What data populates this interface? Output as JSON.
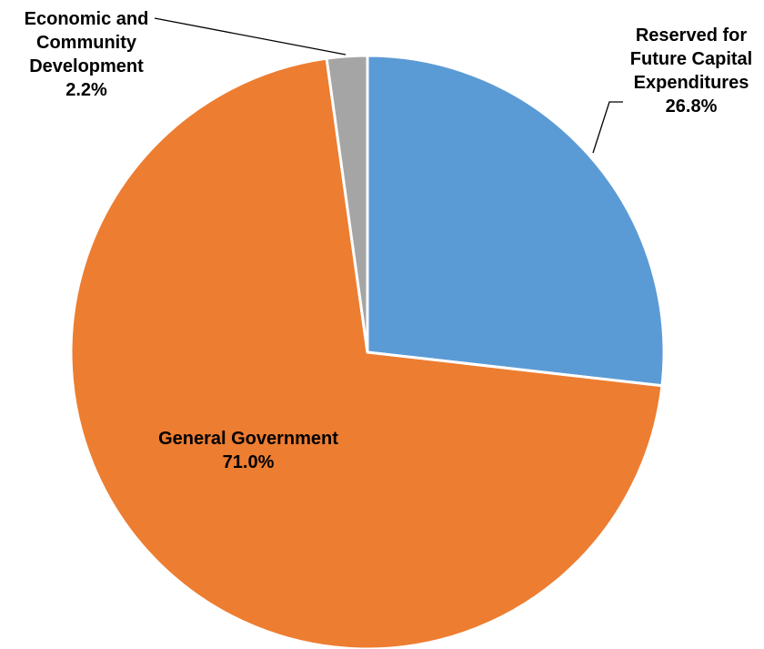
{
  "chart_data": {
    "type": "pie",
    "start_angle_deg": 0,
    "direction": "clockwise",
    "slices": [
      {
        "label": "Reserved for Future Capital Expenditures",
        "label_lines": [
          "Reserved for",
          "Future Capital",
          "Expenditures"
        ],
        "value": 26.8,
        "value_text": "26.8%",
        "color": "#5B9BD5"
      },
      {
        "label": "General Government",
        "label_lines": [
          "General Government"
        ],
        "value": 71.0,
        "value_text": "71.0%",
        "color": "#ED7D31"
      },
      {
        "label": "Economic and Community Development",
        "label_lines": [
          "Economic and",
          "Community",
          "Development"
        ],
        "value": 2.2,
        "value_text": "2.2%",
        "color": "#A5A5A5"
      }
    ]
  }
}
